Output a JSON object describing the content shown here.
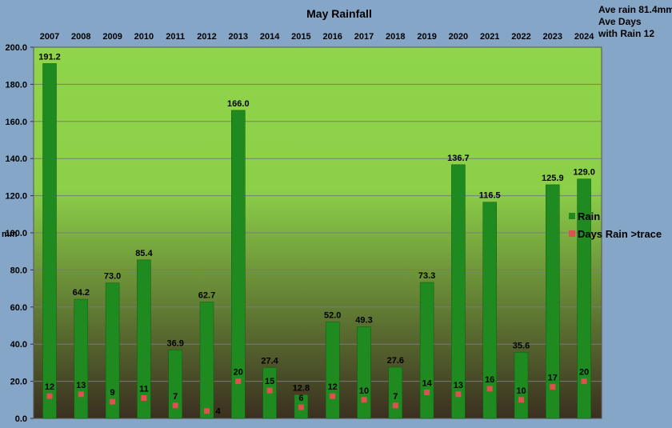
{
  "chart_data": {
    "type": "bar",
    "title": "May Rainfall",
    "ylabel": "mm",
    "categories": [
      "2007",
      "2008",
      "2009",
      "2010",
      "2011",
      "2012",
      "2013",
      "2014",
      "2015",
      "2016",
      "2017",
      "2018",
      "2019",
      "2020",
      "2021",
      "2022",
      "2023",
      "2024"
    ],
    "series": [
      {
        "name": "Rain",
        "type": "bar",
        "values": [
          191.2,
          64.2,
          73.0,
          85.4,
          36.9,
          62.7,
          166.0,
          27.4,
          12.8,
          52.0,
          49.3,
          27.6,
          73.3,
          136.7,
          116.5,
          35.6,
          125.9,
          129.0
        ],
        "labels": [
          "191.2",
          "64.2",
          "73.0",
          "85.4",
          "36.9",
          "62.7",
          "166.0",
          "27.4",
          "12.8",
          "52.0",
          "49.3",
          "27.6",
          "73.3",
          "136.7",
          "116.5",
          "35.6",
          "125.9",
          "129.0"
        ]
      },
      {
        "name": "Days Rain >trace",
        "type": "scatter",
        "values": [
          12,
          13,
          9,
          11,
          7,
          4,
          20,
          15,
          6,
          12,
          10,
          7,
          14,
          13,
          16,
          10,
          17,
          20
        ]
      }
    ],
    "ylim": [
      0,
      200
    ],
    "yticks": [
      "0.0",
      "20.0",
      "40.0",
      "60.0",
      "80.0",
      "100.0",
      "120.0",
      "140.0",
      "160.0",
      "180.0",
      "200.0"
    ],
    "grid": true,
    "legend": "right",
    "colors": {
      "bar": "#1f8a1f",
      "marker": "#e05050",
      "plot_top": "#8fd44a",
      "plot_bottom": "#3a2f20"
    }
  },
  "notes": {
    "ave_rain": "Ave rain 81.4mm",
    "ave_days_1": "Ave Days",
    "ave_days_2": "with Rain 12"
  }
}
